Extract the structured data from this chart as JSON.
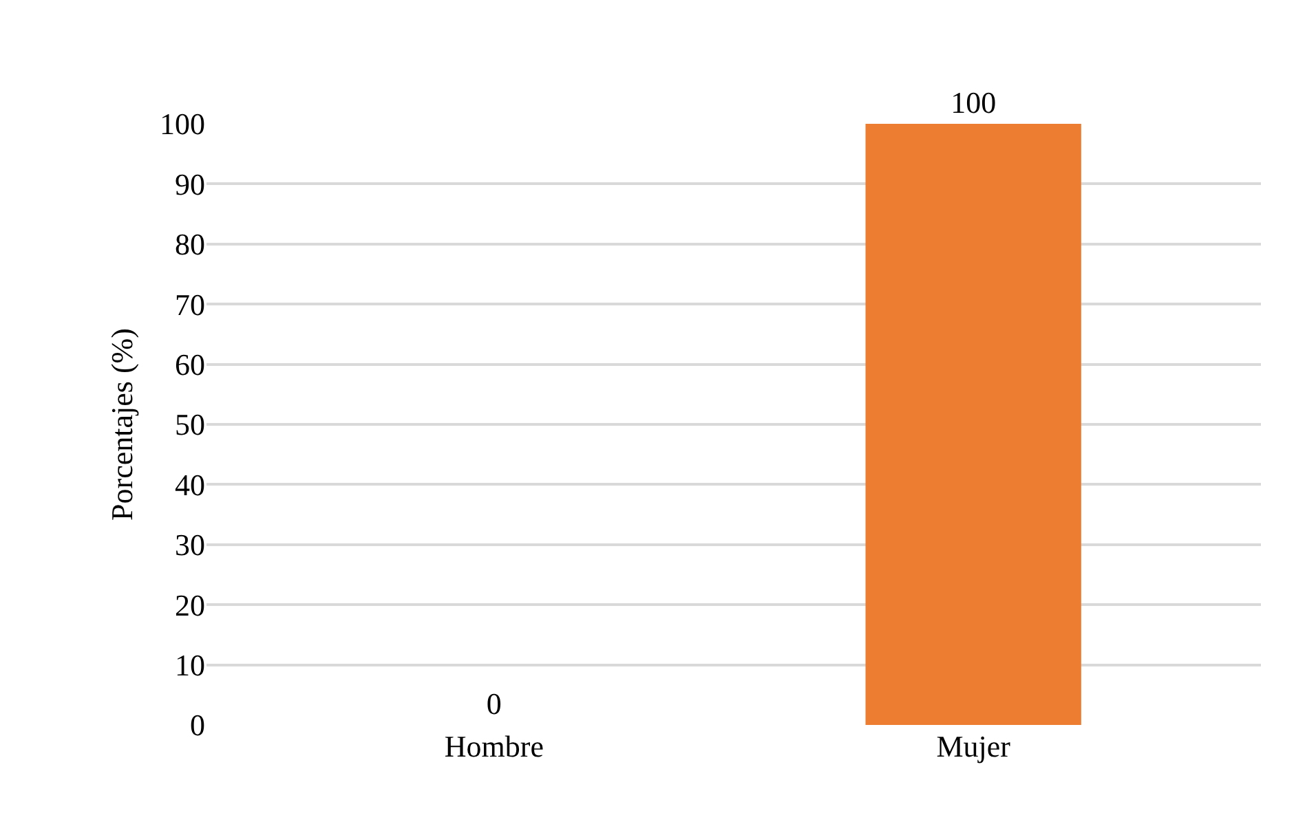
{
  "chart_data": {
    "type": "bar",
    "ylabel": "Porcentajes (%)",
    "categories": [
      "Hombre",
      "Mujer"
    ],
    "values": [
      0,
      100
    ],
    "colors": [
      "#4674a4",
      "#ed7d31"
    ],
    "ylim": [
      0,
      100
    ],
    "yticks": [
      0,
      10,
      20,
      30,
      40,
      50,
      60,
      70,
      80,
      90,
      100
    ],
    "grid": "y",
    "data_labels": true
  }
}
